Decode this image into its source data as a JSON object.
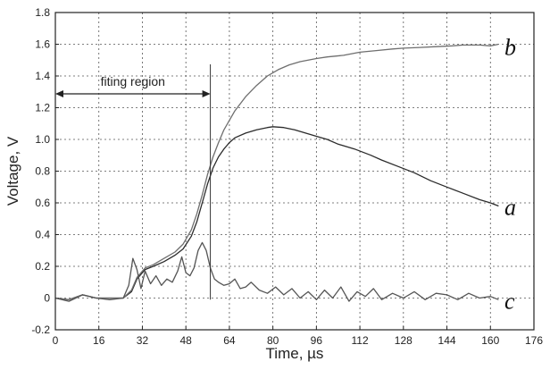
{
  "chart_data": {
    "type": "line",
    "title": "",
    "xlabel": "Time, µs",
    "ylabel": "Voltage, V",
    "xlim": [
      0,
      176
    ],
    "ylim": [
      -0.2,
      1.8
    ],
    "grid": true,
    "x_ticks": [
      0,
      16,
      32,
      48,
      64,
      80,
      96,
      112,
      128,
      144,
      160,
      176
    ],
    "y_ticks": [
      -0.2,
      0,
      0.2,
      0.4,
      0.6,
      0.8,
      1.0,
      1.2,
      1.4,
      1.6,
      1.8
    ],
    "y_tick_labels": [
      "-0.2",
      "0",
      "0.2",
      "0.4",
      "0.6",
      "0.8",
      "1.0",
      "1.2",
      "1.4",
      "1.6",
      "1.8"
    ],
    "series": [
      {
        "name": "a",
        "color": "#2b2b2b",
        "x": [
          0,
          5,
          10,
          15,
          20,
          25,
          28,
          30,
          33,
          36,
          40,
          44,
          47,
          50,
          52,
          54,
          56,
          58,
          60,
          62,
          64,
          66,
          70,
          74,
          78,
          80,
          84,
          88,
          92,
          96,
          100,
          104,
          110,
          116,
          120,
          126,
          132,
          138,
          144,
          150,
          156,
          160,
          163
        ],
        "y": [
          0,
          -0.01,
          0.02,
          0,
          0,
          0,
          0.04,
          0.12,
          0.18,
          0.2,
          0.23,
          0.27,
          0.31,
          0.39,
          0.48,
          0.6,
          0.72,
          0.82,
          0.89,
          0.94,
          0.98,
          1.01,
          1.04,
          1.06,
          1.075,
          1.08,
          1.075,
          1.06,
          1.04,
          1.02,
          1.0,
          0.97,
          0.94,
          0.9,
          0.87,
          0.83,
          0.79,
          0.74,
          0.7,
          0.66,
          0.62,
          0.6,
          0.58
        ]
      },
      {
        "name": "b",
        "color": "#6e6e6e",
        "x": [
          0,
          5,
          10,
          15,
          20,
          25,
          28,
          30,
          33,
          36,
          40,
          44,
          47,
          50,
          52,
          54,
          56,
          58,
          60,
          62,
          64,
          66,
          70,
          74,
          78,
          82,
          86,
          90,
          96,
          100,
          106,
          112,
          118,
          124,
          128,
          134,
          140,
          146,
          150,
          156,
          160,
          163
        ],
        "y": [
          0,
          -0.01,
          0.02,
          0,
          0,
          0,
          0.05,
          0.13,
          0.19,
          0.21,
          0.25,
          0.29,
          0.34,
          0.43,
          0.53,
          0.65,
          0.78,
          0.89,
          0.98,
          1.06,
          1.12,
          1.18,
          1.27,
          1.34,
          1.4,
          1.44,
          1.47,
          1.49,
          1.51,
          1.52,
          1.53,
          1.55,
          1.56,
          1.57,
          1.575,
          1.58,
          1.585,
          1.59,
          1.595,
          1.595,
          1.59,
          1.6
        ]
      },
      {
        "name": "c",
        "color": "#555555",
        "x": [
          0,
          5,
          10,
          15,
          20,
          25,
          27,
          28.5,
          30,
          31.5,
          33,
          35,
          37,
          39,
          41,
          43,
          45,
          46.5,
          48,
          49.5,
          51,
          52.5,
          54,
          55.5,
          57,
          58.5,
          60,
          62,
          64,
          66,
          68,
          70,
          72,
          75,
          78,
          81,
          84,
          87,
          90,
          93,
          96,
          99,
          102,
          105,
          108,
          111,
          114,
          117,
          120,
          124,
          128,
          132,
          136,
          140,
          144,
          148,
          152,
          156,
          160,
          163
        ],
        "y": [
          0,
          -0.02,
          0.02,
          0,
          -0.01,
          0,
          0.08,
          0.25,
          0.18,
          0.06,
          0.17,
          0.09,
          0.14,
          0.08,
          0.12,
          0.1,
          0.17,
          0.26,
          0.16,
          0.14,
          0.19,
          0.3,
          0.35,
          0.3,
          0.19,
          0.12,
          0.1,
          0.08,
          0.09,
          0.12,
          0.06,
          0.07,
          0.1,
          0.05,
          0.03,
          0.07,
          0.02,
          0.06,
          0.0,
          0.04,
          -0.01,
          0.05,
          0.0,
          0.07,
          -0.02,
          0.04,
          0.01,
          0.06,
          -0.01,
          0.03,
          0.0,
          0.04,
          -0.01,
          0.03,
          0.02,
          -0.01,
          0.03,
          0.0,
          0.01,
          -0.01
        ]
      }
    ],
    "annotations": {
      "fitting_region": {
        "text": "fiting region",
        "x_start": 0,
        "x_end": 57
      },
      "vertical_marker_x": 57
    },
    "series_labels": {
      "a": "a",
      "b": "b",
      "c": "c"
    }
  }
}
